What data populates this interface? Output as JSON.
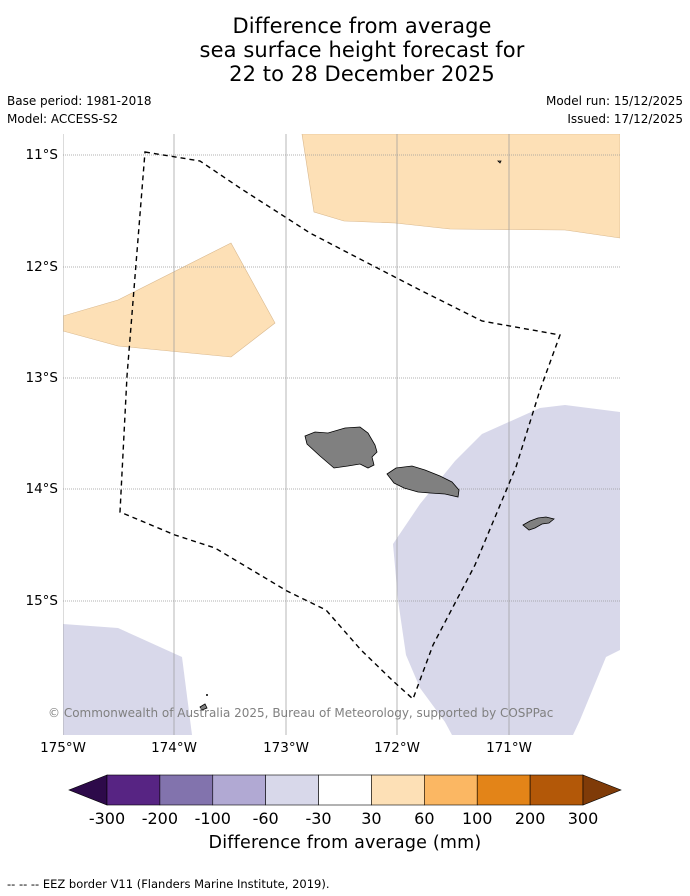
{
  "title": {
    "line1": "Difference from average",
    "line2": "sea surface height forecast for",
    "line3": "22 to 28 December 2025"
  },
  "meta": {
    "base_period": "Base period: 1981-2018",
    "model": "Model: ACCESS-S2",
    "model_run": "Model run: 15/12/2025",
    "issued": "Issued: 17/12/2025"
  },
  "map": {
    "lat_labels": [
      "11°S",
      "12°S",
      "13°S",
      "14°S",
      "15°S"
    ],
    "lon_labels": [
      "175°W",
      "174°W",
      "173°W",
      "172°W",
      "171°W"
    ],
    "copyright": "© Commonwealth of Australia 2025, Bureau of Meteorology, supported by COSPPac",
    "land_color": "#808080",
    "anomaly_positive_color": "#fde0b6",
    "anomaly_negative_color": "#d8d8ea"
  },
  "colorbar": {
    "ticks": [
      "-300",
      "-200",
      "-100",
      "-60",
      "-30",
      "30",
      "60",
      "100",
      "200",
      "300"
    ],
    "colors": [
      "#2d0a4a",
      "#572483",
      "#8273ad",
      "#b1a9d3",
      "#d8d8ea",
      "#ffffff",
      "#fde0b6",
      "#fbb763",
      "#e38418",
      "#b35808",
      "#7f3b08"
    ],
    "label": "Difference from average (mm)"
  },
  "footer": "--  --  -- EEZ border V11 (Flanders Marine Institute, 2019)."
}
